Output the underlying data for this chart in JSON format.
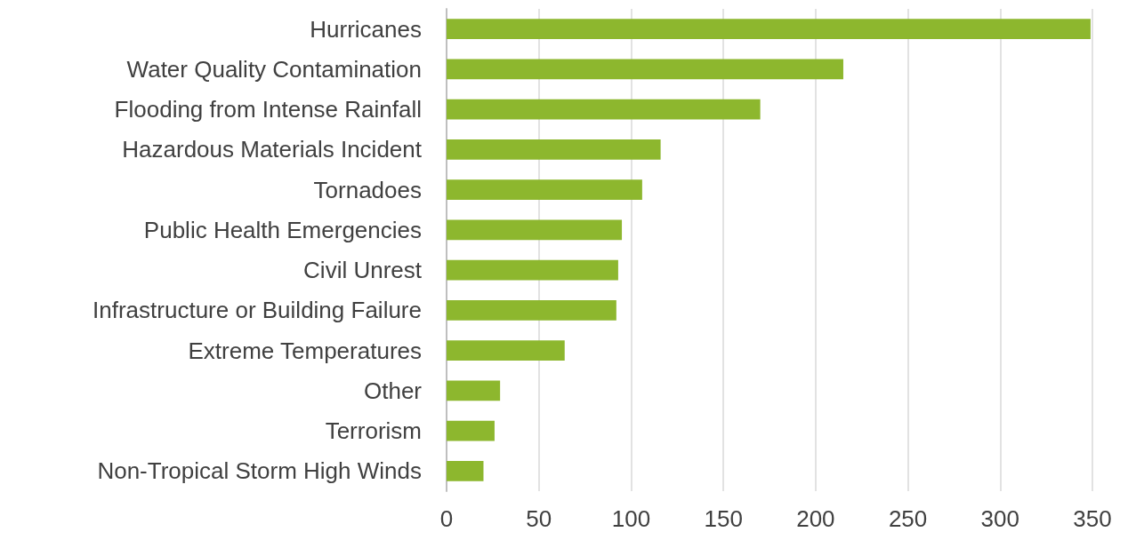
{
  "chart_data": {
    "type": "bar",
    "orientation": "horizontal",
    "categories": [
      "Hurricanes",
      "Water Quality Contamination",
      "Flooding from Intense Rainfall",
      "Hazardous Materials Incident",
      "Tornadoes",
      "Public Health Emergencies",
      "Civil Unrest",
      "Infrastructure or Building Failure",
      "Extreme Temperatures",
      "Other",
      "Terrorism",
      "Non-Tropical Storm High Winds"
    ],
    "values": [
      349,
      215,
      170,
      116,
      106,
      95,
      93,
      92,
      64,
      29,
      26,
      20
    ],
    "color": "#8db72e",
    "xlim": [
      0,
      350
    ],
    "xticks": [
      0,
      50,
      100,
      150,
      200,
      250,
      300,
      350
    ],
    "grid": "x"
  }
}
